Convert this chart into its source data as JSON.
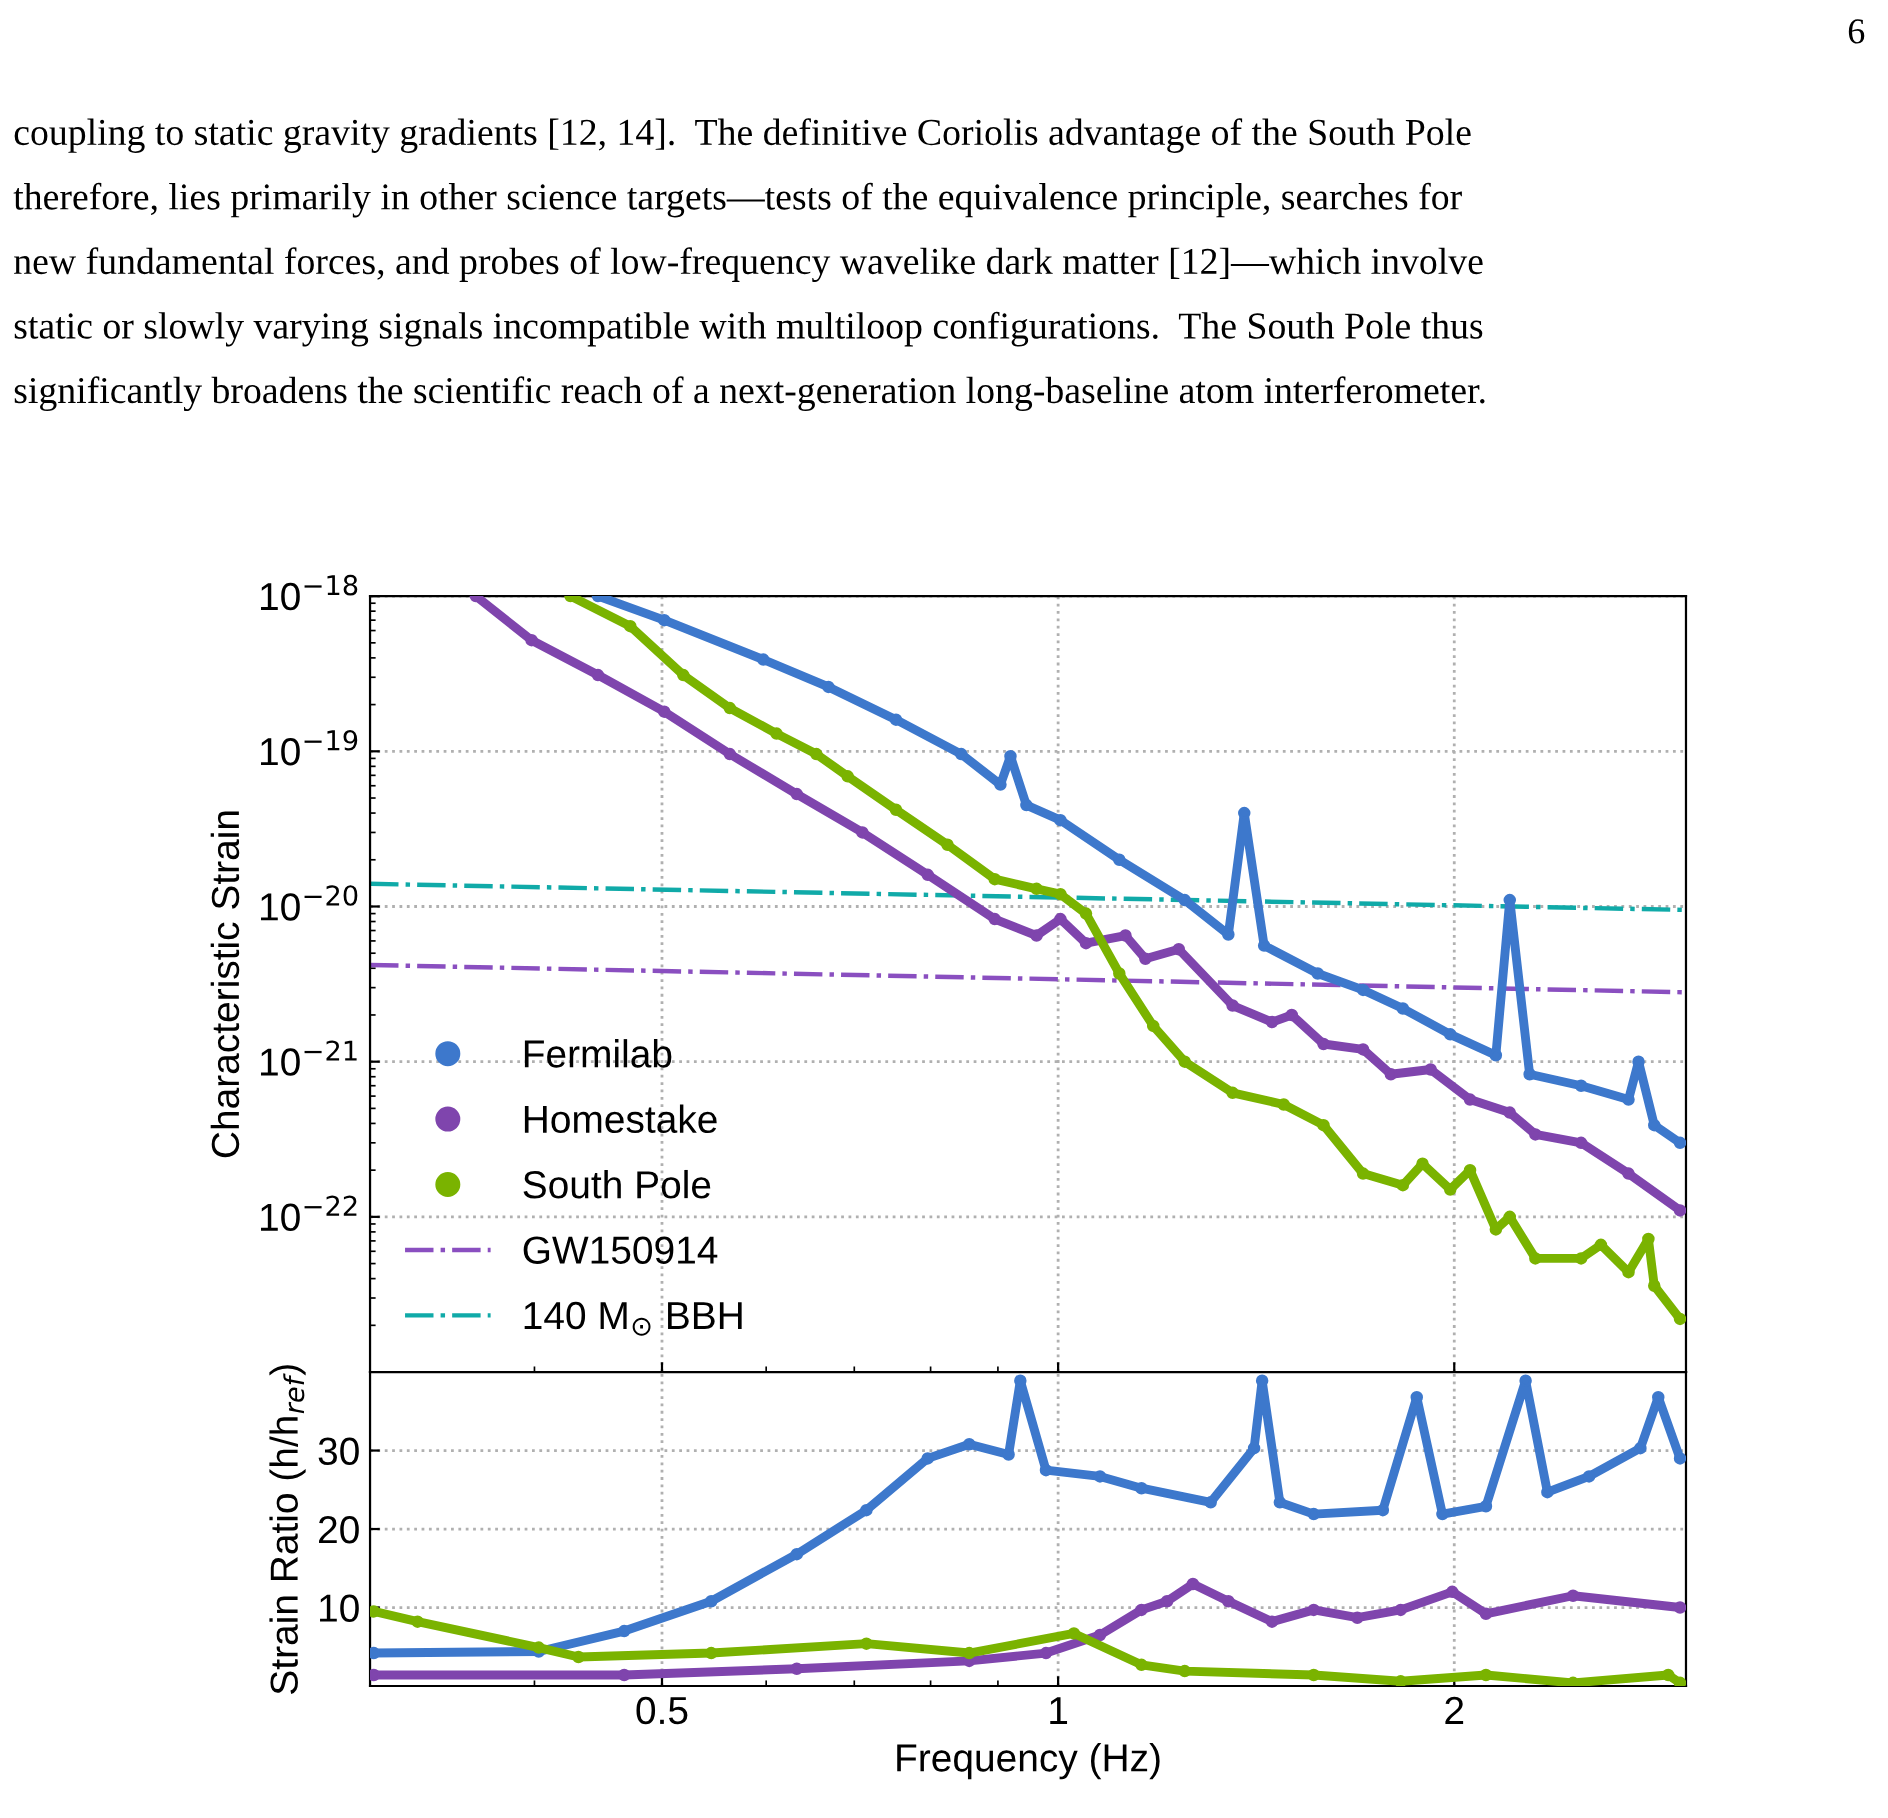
{
  "chart_data": [
    {
      "type": "line",
      "ylabel": "Characteristic Strain",
      "log": "xy",
      "grid": true,
      "legend": "bottom left",
      "tick_labels": "y",
      "xlim": [
        0.3,
        3
      ],
      "xticks": [
        0.5,
        1,
        2
      ],
      "ylim": [
        1e-23,
        1e-18
      ],
      "yticks": [
        {
          "value": 1e-22,
          "label": "10$^{−22}$"
        },
        {
          "value": 1e-21,
          "label": "10$^{−21}$"
        },
        {
          "value": 1e-20,
          "label": "10$^{−20}$"
        },
        {
          "value": 1e-19,
          "label": "10$^{−19}$"
        },
        {
          "value": 1e-18,
          "label": "10$^{−18}$"
        }
      ],
      "annotations": [
        "6",
        "coupling to static gravity gradients [12, 14].  The definitive Coriolis advantage of the South Pole\ntherefore, lies primarily in other science targets—tests of the equivalence principle, searches for\nnew fundamental forces, and probes of low-frequency wavelike dark matter [12]—which involve\nstatic or slowly varying signals incompatible with multiloop configurations.  The South Pole thus\nsignificantly broadens the scientific reach of a next-generation long-baseline atom interferometer."
      ],
      "series": [
        {
          "name": "Fermilab",
          "color": "#3d78cc",
          "marker": "circle",
          "line_style": "solid",
          "x": [
            0.447,
            0.502,
            0.597,
            0.669,
            0.753,
            0.844,
            0.904,
            0.92,
            0.946,
            1.004,
            1.113,
            1.248,
            1.347,
            1.385,
            1.434,
            1.575,
            1.705,
            1.828,
            1.986,
            2.151,
            2.204,
            2.282,
            2.497,
            2.713,
            2.761,
            2.838,
            2.969
          ],
          "values": [
            1e-18,
            7e-19,
            3.9e-19,
            2.6e-19,
            1.6e-19,
            9.6e-20,
            6.1e-20,
            9.3e-20,
            4.5e-20,
            3.6e-20,
            2e-20,
            1.1e-20,
            6.6e-21,
            4e-20,
            5.6e-21,
            3.7e-21,
            2.9e-21,
            2.2e-21,
            1.5e-21,
            1.1e-21,
            1.1e-20,
            8.3e-22,
            7e-22,
            5.7e-22,
            1e-21,
            3.9e-22,
            3e-22
          ]
        },
        {
          "name": "Homestake",
          "color": "#7f45ad",
          "marker": "circle",
          "line_style": "solid",
          "x": [
            0.361,
            0.398,
            0.447,
            0.502,
            0.563,
            0.633,
            0.71,
            0.796,
            0.895,
            0.963,
            1.004,
            1.05,
            1.125,
            1.165,
            1.235,
            1.357,
            1.454,
            1.505,
            1.591,
            1.705,
            1.79,
            1.919,
            2.056,
            2.204,
            2.305,
            2.497,
            2.713,
            2.969
          ],
          "values": [
            1e-18,
            5.2e-19,
            3.1e-19,
            1.8e-19,
            9.6e-20,
            5.3e-20,
            3e-20,
            1.6e-20,
            8.3e-21,
            6.5e-21,
            8.3e-21,
            5.8e-21,
            6.5e-21,
            4.6e-21,
            5.3e-21,
            2.3e-21,
            1.8e-21,
            2e-21,
            1.3e-21,
            1.2e-21,
            8.3e-22,
            8.9e-22,
            5.7e-22,
            4.7e-22,
            3.4e-22,
            3e-22,
            1.9e-22,
            1.1e-22
          ]
        },
        {
          "name": "South Pole",
          "color": "#7ab300",
          "marker": "circle",
          "line_style": "solid",
          "x": [
            0.426,
            0.473,
            0.519,
            0.563,
            0.611,
            0.655,
            0.692,
            0.753,
            0.824,
            0.895,
            0.963,
            1.004,
            1.05,
            1.113,
            1.181,
            1.248,
            1.357,
            1.484,
            1.591,
            1.705,
            1.828,
            1.892,
            1.986,
            2.056,
            2.151,
            2.204,
            2.305,
            2.497,
            2.585,
            2.713,
            2.809,
            2.838,
            2.969
          ],
          "values": [
            1e-18,
            6.4e-19,
            3.1e-19,
            1.9e-19,
            1.3e-19,
            9.6e-20,
            6.9e-20,
            4.2e-20,
            2.5e-20,
            1.5e-20,
            1.3e-20,
            1.2e-20,
            9e-21,
            3.7e-21,
            1.7e-21,
            1e-21,
            6.3e-22,
            5.3e-22,
            3.9e-22,
            1.9e-22,
            1.6e-22,
            2.2e-22,
            1.5e-22,
            2e-22,
            8.3e-23,
            1e-22,
            5.4e-23,
            5.4e-23,
            6.6e-23,
            4.4e-23,
            7.2e-23,
            3.6e-23,
            2.2e-23
          ]
        },
        {
          "name": "GW150914",
          "color": "#8a4fc0",
          "marker": "none",
          "line_style": "dashdot",
          "x": [
            0.3,
            3
          ],
          "values": [
            4.2e-21,
            2.8e-21
          ]
        },
        {
          "name": "140 M$_{⊙}$ BBH",
          "color": "#10aaa8",
          "marker": "none",
          "line_style": "dashdot",
          "x": [
            0.3,
            3
          ],
          "values": [
            1.4e-20,
            9.5e-21
          ]
        }
      ]
    },
    {
      "type": "line",
      "xlabel": "Frequency (Hz)",
      "ylabel": "Strain Ratio (h/h$_{ref}$)",
      "log": "x",
      "grid": true,
      "xlim": [
        0.3,
        3
      ],
      "xticks": [
        0.5,
        1,
        2
      ],
      "ylim": [
        0,
        40
      ],
      "yticks": [
        10,
        20,
        30
      ],
      "series": [
        {
          "color": "#3d78cc",
          "marker": "circle",
          "line_style": "solid",
          "x": [
            0.302,
            0.403,
            0.468,
            0.545,
            0.633,
            0.715,
            0.796,
            0.856,
            0.917,
            0.936,
            0.979,
            1.076,
            1.157,
            1.306,
            1.409,
            1.429,
            1.474,
            1.564,
            1.765,
            1.873,
            1.959,
            2.114,
            2.266,
            2.354,
            2.532,
            2.77,
            2.858,
            2.969
          ],
          "values": [
            4.2,
            4.4,
            7.0,
            10.8,
            16.8,
            22.4,
            29.0,
            30.8,
            29.5,
            38.9,
            27.5,
            26.7,
            25.2,
            23.4,
            30.3,
            38.9,
            23.4,
            21.9,
            22.4,
            36.8,
            21.9,
            22.9,
            38.9,
            24.7,
            26.7,
            30.3,
            36.8,
            29.0
          ]
        },
        {
          "color": "#7f45ad",
          "marker": "circle",
          "line_style": "solid",
          "x": [
            0.302,
            0.468,
            0.633,
            0.856,
            0.979,
            1.076,
            1.157,
            1.21,
            1.266,
            1.347,
            1.454,
            1.564,
            1.688,
            1.821,
            1.993,
            2.114,
            2.462,
            2.969
          ],
          "values": [
            1.4,
            1.4,
            2.2,
            3.2,
            4.2,
            6.5,
            9.7,
            10.8,
            13.0,
            10.8,
            8.2,
            9.7,
            8.7,
            9.7,
            12.0,
            9.2,
            11.5,
            10.0
          ]
        },
        {
          "color": "#7ab300",
          "marker": "circle",
          "line_style": "solid",
          "x": [
            0.302,
            0.326,
            0.403,
            0.432,
            0.545,
            0.715,
            0.856,
            1.028,
            1.157,
            1.248,
            1.564,
            1.821,
            2.114,
            2.462,
            2.908,
            2.969
          ],
          "values": [
            9.5,
            8.2,
            4.9,
            3.7,
            4.2,
            5.4,
            4.2,
            6.7,
            2.7,
            1.9,
            1.4,
            0.6,
            1.4,
            0.4,
            1.4,
            0.4
          ]
        }
      ]
    }
  ]
}
